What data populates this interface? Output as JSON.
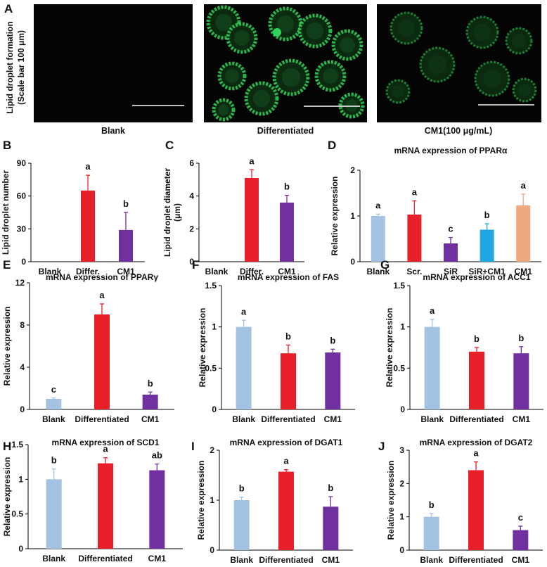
{
  "colors": {
    "blank": "#a4c2e2",
    "red": "#e8202a",
    "purple": "#7030a0",
    "blue": "#1ea7e1",
    "orange": "#f0a880",
    "fluorescence": "#2fd25a"
  },
  "panel_a": {
    "letter": "A",
    "ylabel_line1": "Lipid droplet formation",
    "ylabel_line2": "(Scale bar 100 μm)",
    "images": [
      {
        "caption": "Blank"
      },
      {
        "caption": "Differentiated"
      },
      {
        "caption": "CM1(100 μg/mL)"
      }
    ]
  },
  "chart_data": [
    {
      "id": "B",
      "type": "bar",
      "title": "",
      "ylabel": "Lipid droplet number",
      "categories": [
        "Blank",
        "Differ.",
        "CM1"
      ],
      "values": [
        0,
        65,
        29
      ],
      "errors": [
        0,
        14,
        16
      ],
      "letters": [
        "",
        "a",
        "b"
      ],
      "colors": [
        "#a4c2e2",
        "#e8202a",
        "#7030a0"
      ],
      "ylim": [
        0,
        90
      ],
      "yticks": [
        0,
        30,
        60,
        90
      ]
    },
    {
      "id": "C",
      "type": "bar",
      "title": "",
      "ylabel": "Lipid droplet diameter (μm)",
      "categories": [
        "Blank",
        "Differ.",
        "CM1"
      ],
      "values": [
        0,
        5.1,
        3.6
      ],
      "errors": [
        0,
        0.5,
        0.45
      ],
      "letters": [
        "",
        "a",
        "b"
      ],
      "colors": [
        "#a4c2e2",
        "#e8202a",
        "#7030a0"
      ],
      "ylim": [
        0,
        6
      ],
      "yticks": [
        0,
        2,
        4,
        6
      ]
    },
    {
      "id": "D",
      "type": "bar",
      "title": "mRNA expression of PPARα",
      "ylabel": "Relative expression",
      "categories": [
        "Blank",
        "Scr.",
        "SiR",
        "SiR+CM1",
        "CM1"
      ],
      "values": [
        1.0,
        1.03,
        0.4,
        0.7,
        1.23
      ],
      "errors": [
        0.04,
        0.3,
        0.13,
        0.13,
        0.25
      ],
      "letters": [
        "a",
        "a",
        "c",
        "b",
        "a"
      ],
      "colors": [
        "#a4c2e2",
        "#e8202a",
        "#7030a0",
        "#1ea7e1",
        "#f0a880"
      ],
      "ylim": [
        0,
        2
      ],
      "yticks": [
        0,
        1,
        2
      ]
    },
    {
      "id": "E",
      "type": "bar",
      "title": "mRNA expression of PPARγ",
      "ylabel": "Relative expression",
      "categories": [
        "Blank",
        "Differentiated",
        "CM1"
      ],
      "values": [
        1.0,
        9.0,
        1.4
      ],
      "errors": [
        0.08,
        1.0,
        0.25
      ],
      "letters": [
        "c",
        "a",
        "b"
      ],
      "colors": [
        "#a4c2e2",
        "#e8202a",
        "#7030a0"
      ],
      "ylim": [
        0,
        12
      ],
      "yticks": [
        0,
        4,
        8,
        12
      ]
    },
    {
      "id": "F",
      "type": "bar",
      "title": "mRNA expression of FAS",
      "ylabel": "Relative expression",
      "categories": [
        "Blank",
        "Differentiated",
        "CM1"
      ],
      "values": [
        1.0,
        0.68,
        0.69
      ],
      "errors": [
        0.08,
        0.1,
        0.04
      ],
      "letters": [
        "a",
        "b",
        "b"
      ],
      "colors": [
        "#a4c2e2",
        "#e8202a",
        "#7030a0"
      ],
      "ylim": [
        0,
        1.5
      ],
      "yticks": [
        0,
        0.5,
        1,
        1.5
      ]
    },
    {
      "id": "G",
      "type": "bar",
      "title": "mRNA expression of ACC1",
      "ylabel": "Relative expression",
      "categories": [
        "Blank",
        "Differentiated",
        "CM1"
      ],
      "values": [
        1.0,
        0.7,
        0.68
      ],
      "errors": [
        0.09,
        0.05,
        0.08
      ],
      "letters": [
        "a",
        "b",
        "b"
      ],
      "colors": [
        "#a4c2e2",
        "#e8202a",
        "#7030a0"
      ],
      "ylim": [
        0,
        1.5
      ],
      "yticks": [
        0,
        0.5,
        1,
        1.5
      ]
    },
    {
      "id": "H",
      "type": "bar",
      "title": "mRNA expression of SCD1",
      "ylabel": "Relative expression",
      "categories": [
        "Blank",
        "Differentiated",
        "CM1"
      ],
      "values": [
        1.0,
        1.23,
        1.13
      ],
      "errors": [
        0.15,
        0.08,
        0.09
      ],
      "letters": [
        "b",
        "a",
        "ab"
      ],
      "colors": [
        "#a4c2e2",
        "#e8202a",
        "#7030a0"
      ],
      "ylim": [
        0,
        1.5
      ],
      "yticks": [
        0,
        0.5,
        1,
        1.5
      ]
    },
    {
      "id": "I",
      "type": "bar",
      "title": "mRNA expression of DGAT1",
      "ylabel": "Relative expression",
      "categories": [
        "Blank",
        "Differentiated",
        "CM1"
      ],
      "values": [
        1.0,
        1.57,
        0.87
      ],
      "errors": [
        0.06,
        0.04,
        0.2
      ],
      "letters": [
        "b",
        "a",
        "b"
      ],
      "colors": [
        "#a4c2e2",
        "#e8202a",
        "#7030a0"
      ],
      "ylim": [
        0,
        2
      ],
      "yticks": [
        0,
        1,
        2
      ]
    },
    {
      "id": "J",
      "type": "bar",
      "title": "mRNA expression of DGAT2",
      "ylabel": "Relative expression",
      "categories": [
        "Blank",
        "Differentiated",
        "CM1"
      ],
      "values": [
        1.0,
        2.4,
        0.6
      ],
      "errors": [
        0.1,
        0.25,
        0.12
      ],
      "letters": [
        "b",
        "a",
        "c"
      ],
      "colors": [
        "#a4c2e2",
        "#e8202a",
        "#7030a0"
      ],
      "ylim": [
        0,
        3
      ],
      "yticks": [
        0,
        1,
        2,
        3
      ]
    }
  ]
}
